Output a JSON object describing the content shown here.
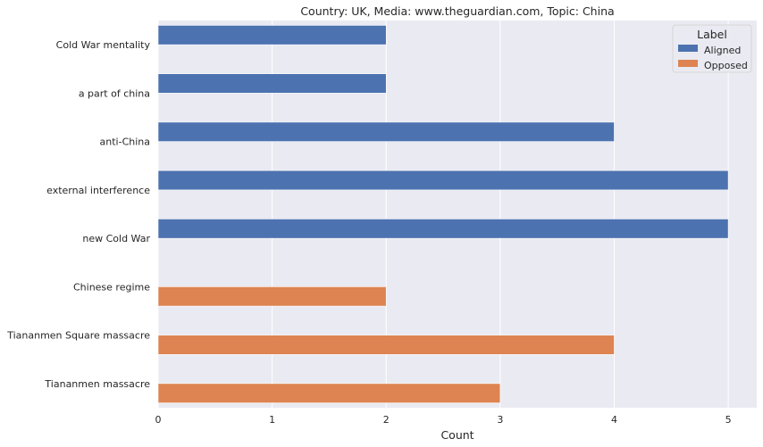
{
  "chart_data": {
    "type": "bar",
    "orientation": "horizontal",
    "title": "Country: UK, Media: www.theguardian.com, Topic: China",
    "xlabel": "Count",
    "ylabel": "",
    "xlim": [
      0,
      5.25
    ],
    "xticks": [
      "0",
      "1",
      "2",
      "3",
      "4",
      "5"
    ],
    "grid": true,
    "categories": [
      "Cold War mentality",
      "a part of china",
      "anti-China",
      "external interference",
      "new Cold War",
      "Chinese regime",
      "Tiananmen Square massacre",
      "Tiananmen massacre"
    ],
    "series": [
      {
        "name": "Aligned",
        "color": "#4c72b0",
        "values": [
          2,
          2,
          4,
          5,
          5,
          null,
          null,
          null
        ]
      },
      {
        "name": "Opposed",
        "color": "#dd8452",
        "values": [
          null,
          null,
          null,
          null,
          null,
          2,
          4,
          3
        ]
      }
    ],
    "legend": {
      "title": "Label",
      "placement": "top-right"
    }
  }
}
